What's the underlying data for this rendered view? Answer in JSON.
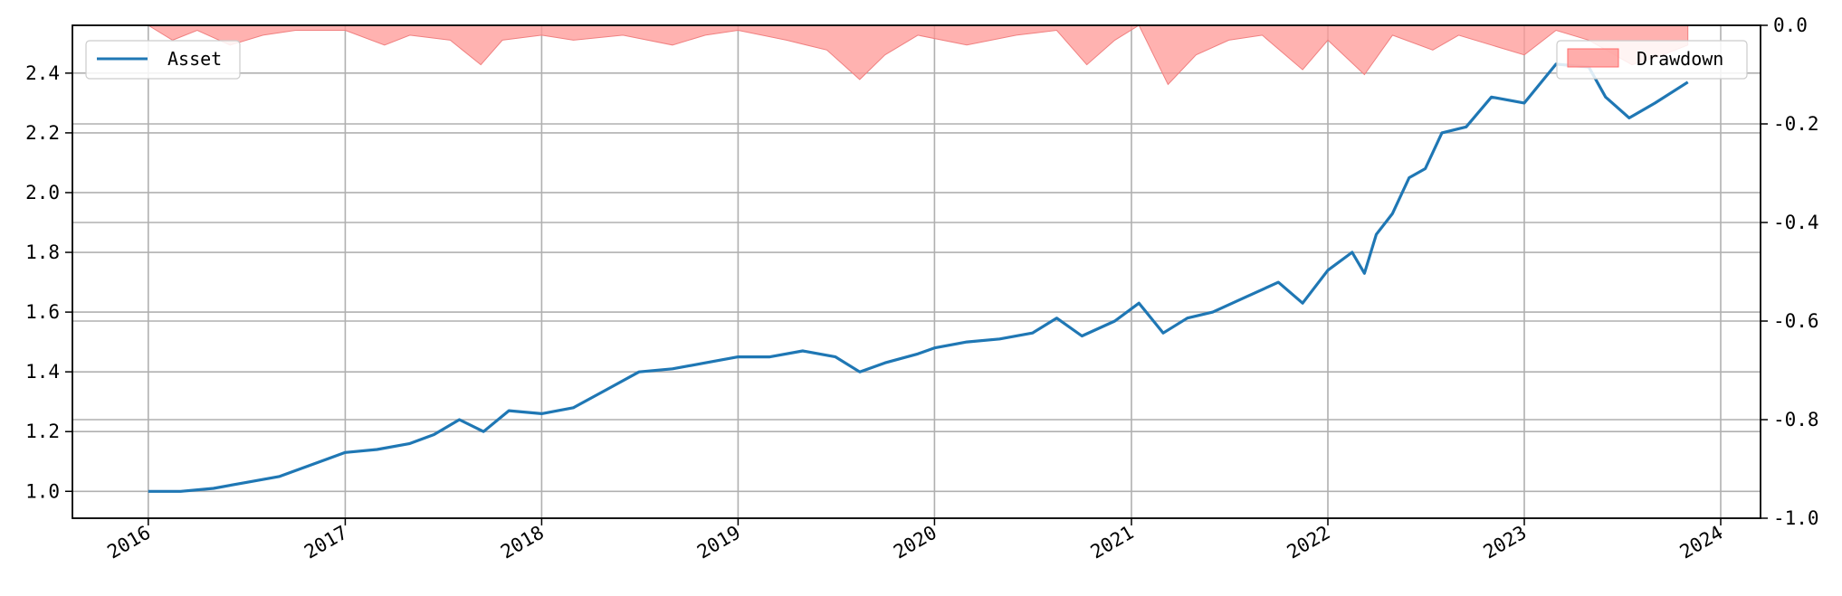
{
  "chart_data": {
    "type": "line",
    "title": "",
    "xlabel": "",
    "ylabel_left": "",
    "ylabel_right": "",
    "x_ticks": [
      "2016",
      "2017",
      "2018",
      "2019",
      "2020",
      "2021",
      "2022",
      "2023",
      "2024"
    ],
    "x_range": [
      "2015-08-13",
      "2024-03-15"
    ],
    "left_axis": {
      "range": [
        0.91,
        2.56
      ],
      "ticks": [
        "1.0",
        "1.2",
        "1.4",
        "1.6",
        "1.8",
        "2.0",
        "2.2",
        "2.4"
      ],
      "grid": true
    },
    "right_axis": {
      "range": [
        -1.0,
        0.0
      ],
      "ticks": [
        "0.0",
        "-0.2",
        "-0.4",
        "-0.6",
        "-0.8",
        "-1.0"
      ],
      "grid": true
    },
    "legend": [
      {
        "name": "Asset",
        "placement": "top-left",
        "color": "#1f77b4"
      },
      {
        "name": "Drawdown",
        "placement": "top-right",
        "color": "#ff9896"
      }
    ],
    "series": [
      {
        "name": "Asset",
        "axis": "left",
        "color": "#1f77b4",
        "points": [
          [
            "2016-01-01",
            1.0
          ],
          [
            "2016-03-01",
            1.0
          ],
          [
            "2016-05-01",
            1.01
          ],
          [
            "2016-07-01",
            1.03
          ],
          [
            "2016-09-01",
            1.05
          ],
          [
            "2016-11-01",
            1.09
          ],
          [
            "2017-01-01",
            1.13
          ],
          [
            "2017-03-01",
            1.14
          ],
          [
            "2017-05-01",
            1.16
          ],
          [
            "2017-06-15",
            1.19
          ],
          [
            "2017-08-01",
            1.24
          ],
          [
            "2017-09-15",
            1.2
          ],
          [
            "2017-11-01",
            1.27
          ],
          [
            "2018-01-01",
            1.26
          ],
          [
            "2018-03-01",
            1.28
          ],
          [
            "2018-05-01",
            1.34
          ],
          [
            "2018-07-01",
            1.4
          ],
          [
            "2018-09-01",
            1.41
          ],
          [
            "2018-11-01",
            1.43
          ],
          [
            "2019-01-01",
            1.45
          ],
          [
            "2019-03-01",
            1.45
          ],
          [
            "2019-05-01",
            1.47
          ],
          [
            "2019-07-01",
            1.45
          ],
          [
            "2019-08-15",
            1.4
          ],
          [
            "2019-10-01",
            1.43
          ],
          [
            "2019-12-01",
            1.46
          ],
          [
            "2020-01-01",
            1.48
          ],
          [
            "2020-03-01",
            1.5
          ],
          [
            "2020-05-01",
            1.51
          ],
          [
            "2020-07-01",
            1.53
          ],
          [
            "2020-08-15",
            1.58
          ],
          [
            "2020-10-01",
            1.52
          ],
          [
            "2020-12-01",
            1.57
          ],
          [
            "2021-01-15",
            1.63
          ],
          [
            "2021-03-01",
            1.53
          ],
          [
            "2021-04-15",
            1.58
          ],
          [
            "2021-06-01",
            1.6
          ],
          [
            "2021-08-01",
            1.65
          ],
          [
            "2021-10-01",
            1.7
          ],
          [
            "2021-11-15",
            1.63
          ],
          [
            "2022-01-01",
            1.74
          ],
          [
            "2022-02-15",
            1.8
          ],
          [
            "2022-03-10",
            1.73
          ],
          [
            "2022-04-01",
            1.86
          ],
          [
            "2022-05-01",
            1.93
          ],
          [
            "2022-06-01",
            2.05
          ],
          [
            "2022-07-01",
            2.08
          ],
          [
            "2022-08-01",
            2.2
          ],
          [
            "2022-09-15",
            2.22
          ],
          [
            "2022-11-01",
            2.32
          ],
          [
            "2023-01-01",
            2.3
          ],
          [
            "2023-03-01",
            2.43
          ],
          [
            "2023-05-01",
            2.42
          ],
          [
            "2023-06-01",
            2.32
          ],
          [
            "2023-07-15",
            2.25
          ],
          [
            "2023-09-01",
            2.3
          ],
          [
            "2023-11-01",
            2.37
          ]
        ]
      },
      {
        "name": "Drawdown",
        "axis": "right",
        "type": "area",
        "color": "#ff9896",
        "points": [
          [
            "2016-01-01",
            0.0
          ],
          [
            "2016-02-15",
            -0.03
          ],
          [
            "2016-04-01",
            -0.01
          ],
          [
            "2016-06-01",
            -0.04
          ],
          [
            "2016-08-01",
            -0.02
          ],
          [
            "2016-10-01",
            -0.01
          ],
          [
            "2017-01-01",
            -0.01
          ],
          [
            "2017-03-15",
            -0.04
          ],
          [
            "2017-05-01",
            -0.02
          ],
          [
            "2017-07-15",
            -0.03
          ],
          [
            "2017-09-10",
            -0.08
          ],
          [
            "2017-10-20",
            -0.03
          ],
          [
            "2018-01-01",
            -0.02
          ],
          [
            "2018-03-01",
            -0.03
          ],
          [
            "2018-06-01",
            -0.02
          ],
          [
            "2018-09-01",
            -0.04
          ],
          [
            "2018-11-01",
            -0.02
          ],
          [
            "2019-01-01",
            -0.01
          ],
          [
            "2019-04-01",
            -0.03
          ],
          [
            "2019-06-15",
            -0.05
          ],
          [
            "2019-08-15",
            -0.11
          ],
          [
            "2019-10-01",
            -0.06
          ],
          [
            "2019-12-01",
            -0.02
          ],
          [
            "2020-03-01",
            -0.04
          ],
          [
            "2020-06-01",
            -0.02
          ],
          [
            "2020-08-15",
            -0.01
          ],
          [
            "2020-10-10",
            -0.08
          ],
          [
            "2020-12-01",
            -0.03
          ],
          [
            "2021-01-15",
            0.0
          ],
          [
            "2021-03-10",
            -0.12
          ],
          [
            "2021-05-01",
            -0.06
          ],
          [
            "2021-07-01",
            -0.03
          ],
          [
            "2021-09-01",
            -0.02
          ],
          [
            "2021-11-15",
            -0.09
          ],
          [
            "2022-01-01",
            -0.03
          ],
          [
            "2022-03-10",
            -0.1
          ],
          [
            "2022-05-01",
            -0.02
          ],
          [
            "2022-07-15",
            -0.05
          ],
          [
            "2022-09-01",
            -0.02
          ],
          [
            "2022-11-01",
            -0.04
          ],
          [
            "2023-01-01",
            -0.06
          ],
          [
            "2023-03-01",
            -0.01
          ],
          [
            "2023-05-01",
            -0.03
          ],
          [
            "2023-07-20",
            -0.08
          ],
          [
            "2023-09-15",
            -0.06
          ],
          [
            "2023-11-01",
            -0.04
          ]
        ]
      }
    ]
  }
}
